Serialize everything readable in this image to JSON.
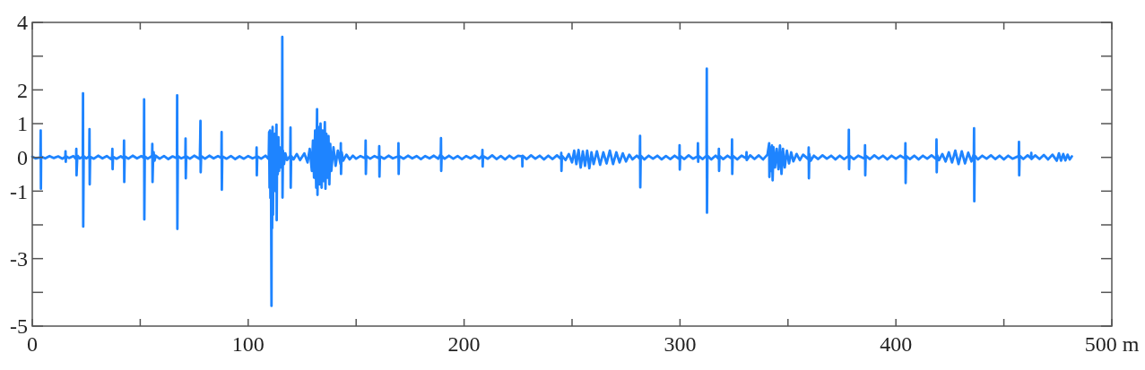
{
  "chart_data": {
    "type": "line",
    "xlim": [
      0,
      500
    ],
    "xticks": [
      0,
      {
        "value": 50,
        "label": null
      },
      100,
      {
        "value": 150,
        "label": null
      },
      200,
      {
        "value": 250,
        "label": null
      },
      300,
      {
        "value": 350,
        "label": null
      },
      400,
      {
        "value": 450,
        "label": null
      },
      {
        "value": 500,
        "label": "500 m"
      }
    ],
    "ylim": [
      -5,
      4
    ],
    "yticks": [
      4,
      {
        "value": 3,
        "label": null
      },
      2,
      1,
      0,
      -1,
      {
        "value": -2,
        "label": null
      },
      -3,
      {
        "value": -4,
        "label": null
      },
      -5
    ],
    "x": [
      0,
      1.5,
      3.8,
      3.9,
      4.0,
      4.1,
      6,
      8,
      10,
      12,
      14,
      15.3,
      15.4,
      15.5,
      15.7,
      17,
      19,
      20.3,
      20.4,
      20.5,
      20.7,
      20.9,
      22,
      23.4,
      23.5,
      23.6,
      23.8,
      25,
      26.4,
      26.5,
      26.6,
      26.8,
      28.5,
      30.5,
      32.5,
      34.5,
      36.5,
      37.0,
      37.1,
      37.2,
      37.4,
      39,
      41,
      42.4,
      42.5,
      42.6,
      42.8,
      44.5,
      46.5,
      48.5,
      50.5,
      51.7,
      51.8,
      51.9,
      52.1,
      53.5,
      55.5,
      55.6,
      55.7,
      55.9,
      56.2,
      56.6,
      57.2,
      59,
      61,
      63,
      65,
      67.0,
      67.1,
      67.2,
      67.4,
      69,
      70.9,
      71.0,
      71.1,
      71.3,
      73,
      75,
      77.6,
      77.8,
      77.9,
      78.0,
      78.2,
      80,
      82,
      84,
      86,
      87.6,
      87.7,
      87.8,
      88.0,
      90,
      92,
      94,
      96,
      98,
      100,
      102,
      103.8,
      103.9,
      104.0,
      104.2,
      106,
      108,
      109.5,
      109.7,
      109.9,
      110.1,
      110.3,
      110.5,
      110.8,
      110.9,
      111.1,
      111.3,
      111.5,
      111.7,
      112.0,
      112.3,
      112.6,
      112.9,
      113.1,
      113.2,
      113.4,
      113.7,
      114.0,
      114.3,
      114.6,
      115.0,
      115.7,
      115.8,
      115.9,
      116.1,
      116.6,
      117.2,
      118,
      119.5,
      119.6,
      119.7,
      119.9,
      121,
      122.5,
      124,
      126,
      127.5,
      128.5,
      129.5,
      130,
      130.5,
      131,
      131.5,
      131.9,
      132.1,
      132.5,
      133,
      133.5,
      134,
      134.5,
      135,
      135.5,
      135.8,
      136.2,
      136.7,
      137.2,
      137.6,
      138,
      138.5,
      139.5,
      140.5,
      141.5,
      142.8,
      142.9,
      143.0,
      143.3,
      144,
      145.5,
      147,
      148.5,
      150,
      152,
      154.3,
      154.4,
      154.5,
      154.7,
      156.5,
      158.5,
      160.6,
      160.7,
      160.8,
      161.0,
      163,
      165,
      167,
      169.5,
      169.6,
      169.7,
      169.9,
      172,
      174,
      176,
      178,
      180,
      182,
      184,
      186,
      188,
      189.2,
      189.3,
      189.4,
      189.6,
      191,
      193,
      195,
      197,
      199,
      201,
      203,
      205,
      207,
      208.4,
      208.5,
      208.6,
      208.8,
      211,
      213,
      215,
      217,
      219,
      221,
      223,
      225,
      226.9,
      227.0,
      227.1,
      229,
      231,
      233,
      235,
      237,
      239,
      241,
      243,
      244.9,
      245.0,
      245.1,
      245.3,
      247,
      248.5,
      250,
      251,
      252,
      253,
      254,
      255,
      256,
      257,
      258,
      259,
      260,
      261.5,
      263,
      264.5,
      266,
      267.5,
      269,
      270.5,
      272,
      273.5,
      275,
      276.5,
      278,
      280,
      281.4,
      281.5,
      281.6,
      281.8,
      283.5,
      285.5,
      287.5,
      289.5,
      291.5,
      293.5,
      295.5,
      297.5,
      299.7,
      299.8,
      299.9,
      300.1,
      302,
      304,
      306,
      308.2,
      308.3,
      308.4,
      308.6,
      310.5,
      312.3,
      312.4,
      312.5,
      312.7,
      314.5,
      316.5,
      317.9,
      318.0,
      318.1,
      318.3,
      320,
      322,
      324.0,
      324.1,
      324.2,
      324.4,
      326.5,
      328.5,
      330.7,
      330.8,
      330.9,
      332.5,
      334.5,
      336.5,
      338.5,
      340.5,
      341.3,
      341.4,
      341.8,
      342.2,
      342.6,
      342.9,
      343.3,
      344,
      344.8,
      345.6,
      346.3,
      347,
      347.7,
      348.5,
      349.5,
      350.5,
      351.5,
      352.5,
      354,
      355.5,
      357,
      359.5,
      359.6,
      359.7,
      359.9,
      360.5,
      362,
      364,
      366,
      368,
      370,
      372,
      374,
      376,
      378.1,
      378.2,
      378.3,
      378.5,
      380.5,
      382.5,
      385.6,
      385.7,
      385.8,
      386.0,
      388,
      390,
      392,
      394,
      396,
      398,
      400,
      402,
      404.3,
      404.4,
      404.5,
      404.7,
      406.5,
      408.5,
      410.5,
      412.5,
      414.5,
      416.5,
      418.7,
      418.8,
      418.9,
      419.1,
      420,
      421.5,
      423,
      424.5,
      426,
      427.5,
      429,
      430.5,
      432,
      433.5,
      435,
      436.1,
      436.2,
      436.3,
      436.5,
      438,
      440,
      442,
      444,
      446,
      448,
      450,
      452,
      454,
      456.9,
      457.0,
      457.1,
      457.3,
      459,
      461,
      462.6,
      462.7,
      462.8,
      464.5,
      466.5,
      468.5,
      470.5,
      472.5,
      474.5,
      475.5,
      476.5,
      477.5,
      478.5,
      479.5,
      480.5,
      481.5
    ],
    "series": [
      {
        "color": "#1e84ff",
        "values": [
          0.02,
          -0.03,
          0,
          0.8,
          -0.93,
          0.02,
          -0.03,
          0.04,
          -0.02,
          0.03,
          -0.04,
          0.02,
          0.18,
          -0.13,
          0.03,
          -0.02,
          0.04,
          -0.05,
          0.25,
          -0.53,
          -0.2,
          0.05,
          -0.03,
          0.02,
          1.9,
          -2.05,
          0.04,
          -0.03,
          0.03,
          0.84,
          -0.8,
          0.02,
          -0.04,
          0.05,
          -0.03,
          0.04,
          -0.05,
          0.03,
          0.25,
          -0.35,
          0.02,
          -0.04,
          0.03,
          -0.03,
          0.5,
          -0.73,
          0.03,
          -0.04,
          0.05,
          -0.03,
          0.04,
          -0.02,
          1.72,
          -1.84,
          0.03,
          -0.04,
          0.05,
          0.4,
          -0.73,
          -0.2,
          0.15,
          -0.1,
          0.05,
          -0.04,
          0.04,
          -0.05,
          0.03,
          -0.03,
          1.84,
          -2.12,
          0.04,
          -0.03,
          0.02,
          0.56,
          -0.62,
          0.03,
          -0.04,
          0.05,
          -0.05,
          0.6,
          1.08,
          -0.44,
          0.04,
          -0.04,
          0.05,
          -0.03,
          0.04,
          -0.02,
          0.75,
          -0.96,
          0.03,
          -0.04,
          0.04,
          -0.05,
          0.03,
          -0.04,
          0.04,
          -0.03,
          0.02,
          0.29,
          -0.53,
          0.03,
          -0.04,
          0.05,
          -0.05,
          0.75,
          -0.9,
          0.8,
          -1.2,
          0.6,
          -4.4,
          0.7,
          -2.1,
          0.9,
          -1.7,
          0.6,
          -0.8,
          0.7,
          -1.0,
          0.5,
          0.97,
          -1.86,
          0.4,
          -0.5,
          0.6,
          -0.4,
          0.3,
          -0.3,
          0.1,
          3.57,
          -1.19,
          0.2,
          -0.2,
          0.12,
          -0.08,
          0.05,
          0.88,
          -0.9,
          0.04,
          -0.06,
          0.1,
          -0.08,
          0.12,
          -0.15,
          0.25,
          -0.4,
          0.5,
          -0.6,
          0.8,
          -0.9,
          1.43,
          -1.11,
          0.9,
          -0.8,
          1.0,
          -0.9,
          0.8,
          -0.7,
          1.04,
          -0.93,
          0.7,
          -0.6,
          0.63,
          -0.8,
          0.4,
          -0.4,
          0.3,
          -0.25,
          0.2,
          -0.2,
          0.42,
          -0.49,
          0.15,
          -0.1,
          0.08,
          -0.06,
          0.05,
          -0.04,
          0.04,
          -0.03,
          0.5,
          -0.49,
          0.04,
          -0.04,
          0.04,
          -0.03,
          0.33,
          -0.57,
          0.03,
          -0.04,
          0.05,
          -0.03,
          0.03,
          0.42,
          -0.49,
          0.04,
          -0.04,
          0.05,
          -0.03,
          0.04,
          -0.05,
          0.04,
          -0.03,
          0.05,
          -0.04,
          0.1,
          0.57,
          -0.4,
          0.04,
          -0.04,
          0.05,
          -0.04,
          0.04,
          -0.05,
          0.04,
          -0.03,
          0.05,
          -0.04,
          0.05,
          0.22,
          -0.27,
          0.04,
          -0.04,
          0.06,
          -0.05,
          0.04,
          -0.06,
          0.05,
          -0.04,
          0.05,
          0.03,
          -0.27,
          0.05,
          -0.05,
          0.06,
          -0.04,
          0.05,
          -0.06,
          0.05,
          -0.05,
          0.06,
          -0.05,
          0.13,
          -0.4,
          0.05,
          -0.08,
          0.1,
          -0.15,
          0.2,
          -0.2,
          0.22,
          -0.3,
          0.18,
          -0.25,
          0.2,
          -0.32,
          0.15,
          -0.2,
          0.18,
          -0.22,
          0.15,
          -0.18,
          0.2,
          -0.2,
          0.15,
          -0.15,
          0.12,
          -0.12,
          0.08,
          -0.06,
          0.05,
          -0.04,
          0.64,
          -0.89,
          0.05,
          -0.06,
          0.05,
          -0.04,
          0.05,
          -0.06,
          0.04,
          -0.05,
          0.05,
          -0.05,
          0.36,
          -0.36,
          0.04,
          -0.05,
          0.06,
          -0.04,
          0.03,
          0.42,
          -0.13,
          0.04,
          -0.05,
          0.05,
          2.63,
          -1.64,
          0.05,
          -0.06,
          0.05,
          -0.04,
          0.25,
          -0.4,
          0.04,
          -0.05,
          0.05,
          -0.04,
          0.53,
          -0.49,
          0.05,
          -0.06,
          0.05,
          -0.03,
          0.15,
          -0.08,
          0.06,
          -0.05,
          0.06,
          -0.06,
          0.08,
          0.42,
          -0.58,
          0.3,
          -0.4,
          0.35,
          -0.68,
          0.3,
          -0.3,
          0.25,
          -0.35,
          0.35,
          -0.49,
          0.25,
          -0.3,
          0.2,
          -0.18,
          0.15,
          -0.12,
          0.1,
          -0.08,
          0.08,
          -0.06,
          0.29,
          -0.62,
          0.1,
          -0.1,
          0.05,
          -0.05,
          0.06,
          -0.04,
          0.05,
          -0.06,
          0.05,
          -0.05,
          0.04,
          0.82,
          -0.35,
          0.05,
          -0.05,
          0.05,
          -0.04,
          0.36,
          -0.53,
          0.05,
          -0.05,
          0.06,
          -0.04,
          0.05,
          -0.06,
          0.05,
          -0.04,
          0.05,
          -0.04,
          0.42,
          -0.76,
          0.04,
          -0.05,
          0.05,
          -0.06,
          0.05,
          -0.04,
          0.06,
          -0.05,
          0.53,
          -0.44,
          0.06,
          -0.08,
          0.1,
          -0.12,
          0.15,
          -0.15,
          0.2,
          -0.2,
          0.18,
          -0.18,
          0.14,
          -0.12,
          0.1,
          0.86,
          -1.3,
          0.05,
          -0.06,
          0.05,
          -0.04,
          0.06,
          -0.05,
          0.05,
          -0.06,
          0.05,
          -0.04,
          0.04,
          0.46,
          -0.53,
          0.05,
          -0.05,
          0.06,
          -0.03,
          0.13,
          -0.05,
          0.06,
          -0.05,
          0.07,
          -0.06,
          0.08,
          -0.1,
          0.12,
          -0.1,
          0.1,
          -0.09,
          0.08,
          -0.06,
          0.03
        ]
      }
    ]
  }
}
